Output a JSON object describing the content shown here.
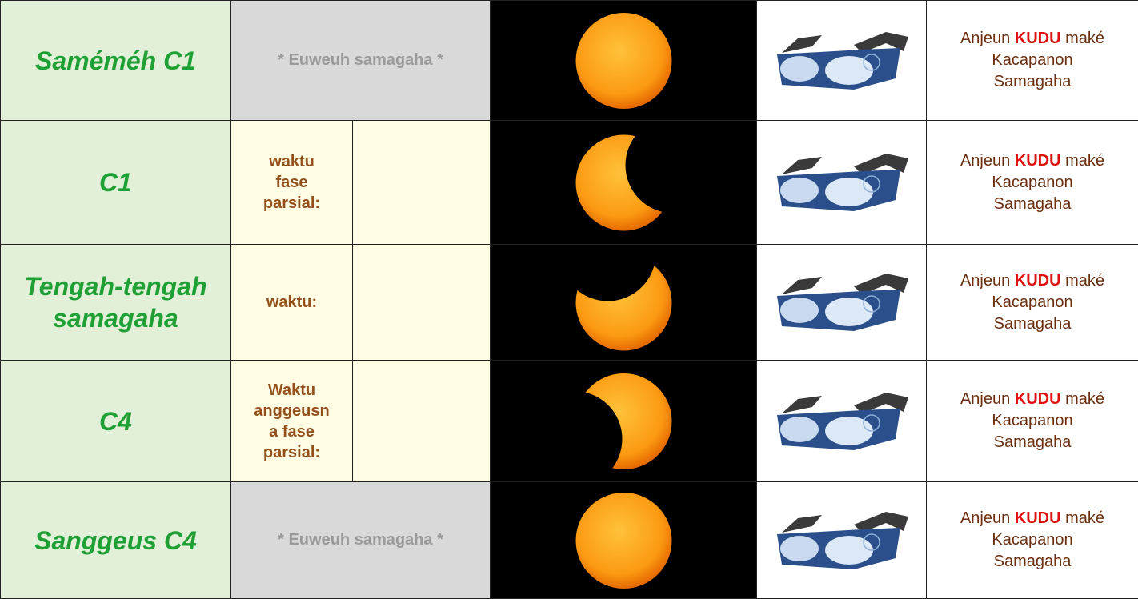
{
  "table": {
    "rows": [
      {
        "stage": "Saméméh C1",
        "note": "* Euweuh samagaha *",
        "safety": {
          "before": "Anjeun",
          "emphasis": "KUDU",
          "after": "maké Kacapanon Samagaha"
        }
      },
      {
        "stage": "C1",
        "label": "waktu fase parsial:",
        "safety": {
          "before": "Anjeun",
          "emphasis": "KUDU",
          "after": "maké Kacapanon Samagaha"
        }
      },
      {
        "stage": "Tengah-tengah samagaha",
        "label": "waktu:",
        "safety": {
          "before": "Anjeun",
          "emphasis": "KUDU",
          "after": "maké Kacapanon Samagaha"
        }
      },
      {
        "stage": "C4",
        "label": "Waktu anggeusna fase parsial:",
        "safety": {
          "before": "Anjeun",
          "emphasis": "KUDU",
          "after": "maké Kacapanon Samagaha"
        }
      },
      {
        "stage": "Sanggeus C4",
        "note": "* Euweuh samagaha *",
        "safety": {
          "before": "Anjeun",
          "emphasis": "KUDU",
          "after": "maké Kacapanon Samagaha"
        }
      }
    ]
  }
}
